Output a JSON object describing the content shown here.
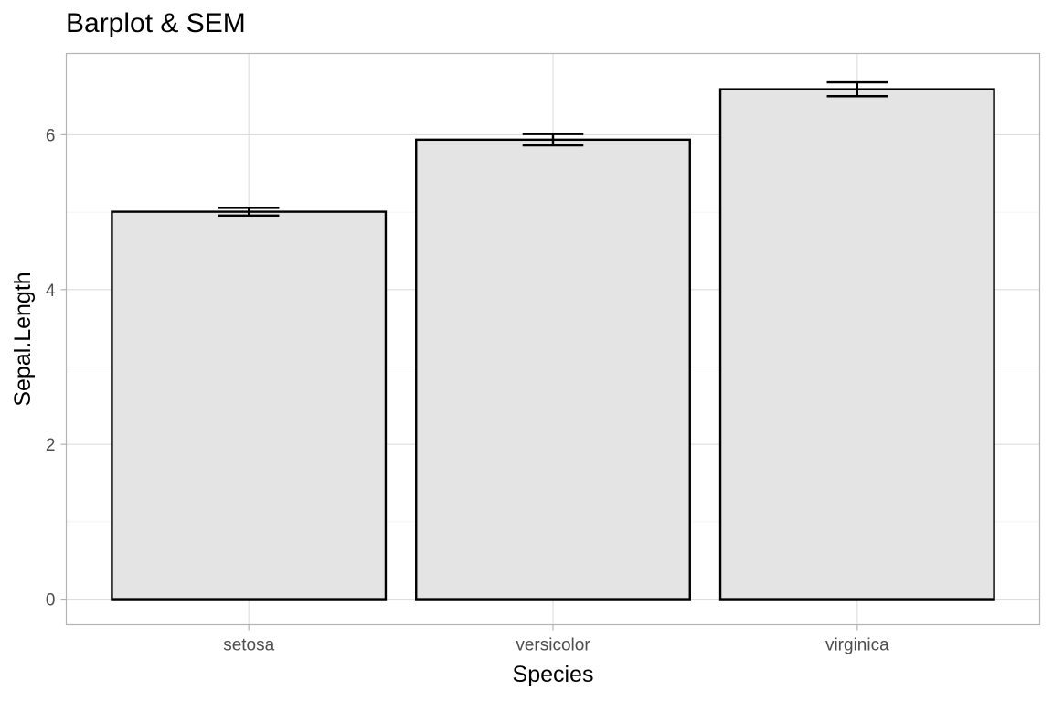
{
  "chart_data": {
    "type": "bar",
    "title": "Barplot & SEM",
    "xlabel": "Species",
    "ylabel": "Sepal.Length",
    "categories": [
      "setosa",
      "versicolor",
      "virginica"
    ],
    "values": [
      5.006,
      5.936,
      6.588
    ],
    "sem": [
      0.0498,
      0.073,
      0.0899
    ],
    "ylim": [
      -0.33,
      7.05
    ],
    "yticks": [
      0,
      2,
      4,
      6
    ],
    "ytick_labels": [
      "0",
      "2",
      "4",
      "6"
    ],
    "grid": true,
    "bar_fill": "#e4e4e4",
    "bar_outline": "#000000",
    "legend": "none"
  }
}
